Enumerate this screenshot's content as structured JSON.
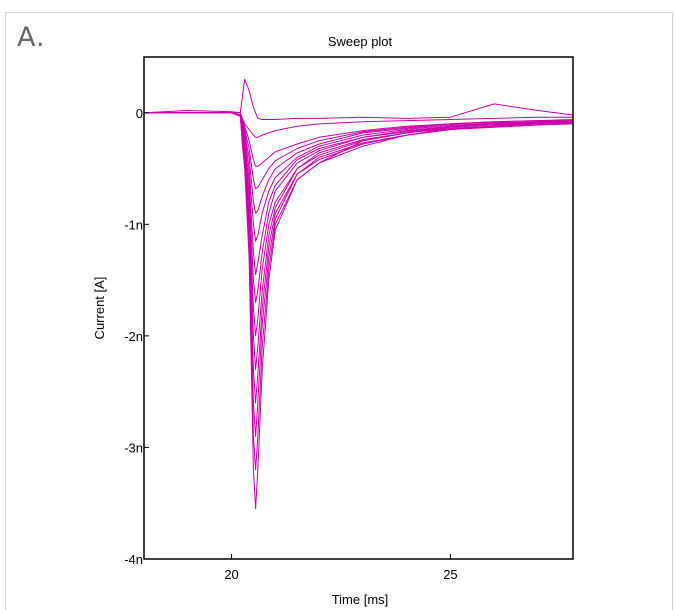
{
  "panel_label": "A.",
  "chart_data": {
    "type": "line",
    "title": "Sweep plot",
    "xlabel": "Time [ms]",
    "ylabel": "Current [A]",
    "xlim": [
      18,
      27.8
    ],
    "ylim": [
      -4,
      0.5
    ],
    "x_ticks": [
      {
        "value": 20,
        "label": "20"
      },
      {
        "value": 25,
        "label": "25"
      }
    ],
    "y_ticks": [
      {
        "value": 0,
        "label": "0"
      },
      {
        "value": -1,
        "label": "-1n"
      },
      {
        "value": -2,
        "label": "-2n"
      },
      {
        "value": -3,
        "label": "-3n"
      },
      {
        "value": -4,
        "label": "-4n"
      }
    ],
    "y_unit": "nA",
    "grid": false,
    "legend": "none",
    "series_color": "#cc00aa",
    "series": [
      {
        "x": [
          18,
          19,
          20,
          20.2,
          20.25,
          20.3,
          20.4,
          20.5,
          20.55,
          20.6,
          20.7,
          20.85,
          21,
          21.5,
          22,
          23,
          24,
          25,
          26,
          27,
          27.8
        ],
        "values": [
          0,
          0,
          0,
          -0.03,
          -0.3,
          -0.5,
          -1.3,
          -3.2,
          -3.55,
          -3.2,
          -2.3,
          -1.5,
          -1.05,
          -0.6,
          -0.45,
          -0.25,
          -0.18,
          -0.12,
          -0.1,
          -0.08,
          -0.08
        ]
      },
      {
        "x": [
          18,
          19,
          20,
          20.2,
          20.25,
          20.3,
          20.4,
          20.5,
          20.55,
          20.6,
          20.7,
          20.85,
          21,
          21.5,
          22,
          23,
          24,
          25,
          26,
          27,
          27.8
        ],
        "values": [
          0,
          0,
          0,
          -0.03,
          -0.25,
          -0.45,
          -1.2,
          -2.9,
          -3.2,
          -2.9,
          -2.1,
          -1.4,
          -1.0,
          -0.6,
          -0.45,
          -0.3,
          -0.2,
          -0.14,
          -0.12,
          -0.1,
          -0.08
        ]
      },
      {
        "x": [
          18,
          19,
          20,
          20.2,
          20.25,
          20.3,
          20.4,
          20.5,
          20.55,
          20.6,
          20.7,
          20.85,
          21,
          21.5,
          22,
          23,
          24,
          25,
          26,
          27,
          27.8
        ],
        "values": [
          0,
          0,
          0,
          -0.02,
          -0.25,
          -0.4,
          -1.1,
          -2.6,
          -2.9,
          -2.6,
          -1.9,
          -1.3,
          -0.95,
          -0.55,
          -0.42,
          -0.28,
          -0.2,
          -0.15,
          -0.12,
          -0.1,
          -0.09
        ]
      },
      {
        "x": [
          18,
          19,
          20,
          20.2,
          20.25,
          20.3,
          20.4,
          20.5,
          20.55,
          20.6,
          20.7,
          20.85,
          21,
          21.5,
          22,
          23,
          24,
          25,
          26,
          27,
          27.8
        ],
        "values": [
          0,
          0,
          0,
          -0.02,
          -0.2,
          -0.4,
          -1.0,
          -2.3,
          -2.6,
          -2.35,
          -1.75,
          -1.2,
          -0.9,
          -0.55,
          -0.4,
          -0.27,
          -0.2,
          -0.15,
          -0.13,
          -0.11,
          -0.1
        ]
      },
      {
        "x": [
          18,
          19,
          20,
          20.2,
          20.25,
          20.3,
          20.4,
          20.5,
          20.55,
          20.6,
          20.7,
          20.85,
          21,
          21.5,
          22,
          23,
          24,
          25,
          26,
          27,
          27.8
        ],
        "values": [
          0,
          0,
          0,
          -0.02,
          -0.2,
          -0.35,
          -0.9,
          -2.0,
          -2.3,
          -2.1,
          -1.6,
          -1.1,
          -0.85,
          -0.5,
          -0.38,
          -0.25,
          -0.18,
          -0.14,
          -0.12,
          -0.1,
          -0.1
        ]
      },
      {
        "x": [
          18,
          19,
          20,
          20.2,
          20.25,
          20.3,
          20.4,
          20.5,
          20.55,
          20.6,
          20.7,
          20.85,
          21,
          21.5,
          22,
          23,
          24,
          25,
          26,
          27,
          27.8
        ],
        "values": [
          0,
          0,
          0,
          -0.02,
          -0.15,
          -0.3,
          -0.8,
          -1.75,
          -2.0,
          -1.85,
          -1.4,
          -1.0,
          -0.8,
          -0.5,
          -0.36,
          -0.24,
          -0.18,
          -0.13,
          -0.11,
          -0.1,
          -0.09
        ]
      },
      {
        "x": [
          18,
          19,
          20,
          20.2,
          20.25,
          20.3,
          20.4,
          20.5,
          20.55,
          20.6,
          20.7,
          20.85,
          21,
          21.5,
          22,
          23,
          24,
          25,
          26,
          27,
          27.8
        ],
        "values": [
          0,
          0,
          0,
          -0.02,
          -0.15,
          -0.3,
          -0.7,
          -1.5,
          -1.7,
          -1.6,
          -1.25,
          -0.9,
          -0.7,
          -0.45,
          -0.34,
          -0.22,
          -0.17,
          -0.12,
          -0.1,
          -0.1,
          -0.08
        ]
      },
      {
        "x": [
          18,
          19,
          20,
          20.2,
          20.25,
          20.3,
          20.4,
          20.5,
          20.55,
          20.6,
          20.7,
          20.85,
          21,
          21.5,
          22,
          23,
          24,
          25,
          26,
          27,
          27.8
        ],
        "values": [
          0,
          0,
          0,
          -0.02,
          -0.12,
          -0.25,
          -0.6,
          -1.25,
          -1.45,
          -1.35,
          -1.1,
          -0.8,
          -0.65,
          -0.42,
          -0.32,
          -0.22,
          -0.16,
          -0.12,
          -0.1,
          -0.09,
          -0.08
        ]
      },
      {
        "x": [
          18,
          19,
          20,
          20.2,
          20.25,
          20.3,
          20.4,
          20.5,
          20.55,
          20.6,
          20.7,
          20.85,
          21,
          21.5,
          22,
          23,
          24,
          25,
          26,
          27,
          27.8
        ],
        "values": [
          0,
          0,
          0,
          -0.02,
          -0.1,
          -0.2,
          -0.5,
          -1.0,
          -1.15,
          -1.1,
          -0.9,
          -0.7,
          -0.58,
          -0.4,
          -0.3,
          -0.2,
          -0.15,
          -0.11,
          -0.1,
          -0.08,
          -0.08
        ]
      },
      {
        "x": [
          18,
          19,
          20,
          20.2,
          20.25,
          20.3,
          20.4,
          20.5,
          20.55,
          20.6,
          20.7,
          20.85,
          21,
          21.5,
          22,
          23,
          24,
          25,
          26,
          27,
          27.8
        ],
        "values": [
          0,
          0,
          0,
          -0.02,
          -0.1,
          -0.18,
          -0.4,
          -0.8,
          -0.9,
          -0.88,
          -0.75,
          -0.6,
          -0.5,
          -0.36,
          -0.28,
          -0.18,
          -0.14,
          -0.1,
          -0.09,
          -0.08,
          -0.07
        ]
      },
      {
        "x": [
          18,
          19,
          20,
          20.2,
          20.25,
          20.3,
          20.4,
          20.5,
          20.55,
          20.6,
          20.7,
          20.85,
          21,
          21.5,
          22,
          23,
          24,
          25,
          26,
          27,
          27.8
        ],
        "values": [
          0,
          0,
          0,
          -0.02,
          -0.08,
          -0.15,
          -0.32,
          -0.6,
          -0.68,
          -0.67,
          -0.6,
          -0.5,
          -0.43,
          -0.32,
          -0.25,
          -0.17,
          -0.13,
          -0.1,
          -0.08,
          -0.07,
          -0.07
        ]
      },
      {
        "x": [
          18,
          19,
          20,
          20.2,
          20.25,
          20.3,
          20.4,
          20.5,
          20.55,
          20.6,
          20.7,
          20.85,
          21,
          21.5,
          22,
          23,
          24,
          25,
          26,
          27,
          27.8
        ],
        "values": [
          0,
          0,
          0,
          -0.02,
          -0.06,
          -0.12,
          -0.25,
          -0.42,
          -0.48,
          -0.48,
          -0.45,
          -0.4,
          -0.35,
          -0.28,
          -0.22,
          -0.16,
          -0.12,
          -0.1,
          -0.08,
          -0.07,
          -0.06
        ]
      },
      {
        "x": [
          18,
          19,
          20,
          20.2,
          20.25,
          20.3,
          20.4,
          20.5,
          20.55,
          20.6,
          20.7,
          20.85,
          21,
          21.5,
          22,
          23,
          24,
          25,
          26,
          27,
          27.8
        ],
        "values": [
          0,
          0,
          0,
          0,
          0.15,
          0.3,
          0.2,
          0.05,
          0,
          -0.05,
          -0.06,
          -0.06,
          -0.06,
          -0.05,
          -0.05,
          -0.04,
          -0.05,
          -0.04,
          0.08,
          0.02,
          -0.02
        ]
      },
      {
        "x": [
          18,
          19,
          20,
          20.2,
          20.25,
          20.3,
          20.4,
          20.5,
          20.55,
          20.6,
          20.7,
          20.85,
          21,
          21.5,
          22,
          23,
          24,
          25,
          26,
          27,
          27.8
        ],
        "values": [
          0,
          0.02,
          0.01,
          0,
          -0.05,
          -0.1,
          -0.15,
          -0.2,
          -0.22,
          -0.22,
          -0.2,
          -0.18,
          -0.16,
          -0.12,
          -0.1,
          -0.08,
          -0.07,
          -0.06,
          -0.05,
          -0.04,
          -0.04
        ]
      }
    ]
  }
}
